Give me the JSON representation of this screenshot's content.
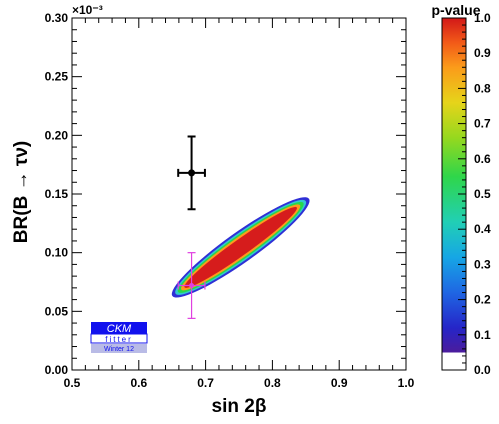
{
  "chart_data": {
    "type": "heatmap",
    "xlabel": "sin 2β",
    "ylabel": "BR(B → τν)",
    "y_exponent": "×10⁻³",
    "xlim": [
      0.5,
      1.0
    ],
    "ylim": [
      0.0,
      0.3
    ],
    "x_ticks": [
      "0.5",
      "0.6",
      "0.7",
      "0.8",
      "0.9",
      "1.0"
    ],
    "y_ticks": [
      "0.00",
      "0.05",
      "0.10",
      "0.15",
      "0.20",
      "0.25",
      "0.30"
    ],
    "colorbar": {
      "title": "p-value",
      "range": [
        0.0,
        1.0
      ],
      "ticks": [
        "0.0",
        "0.1",
        "0.2",
        "0.3",
        "0.4",
        "0.5",
        "0.6",
        "0.7",
        "0.8",
        "0.9",
        "1.0"
      ]
    },
    "allowed_region": {
      "orientation_from": [
        0.66,
        0.067
      ],
      "orientation_to": [
        0.845,
        0.142
      ],
      "levels": [
        0.05,
        0.32,
        0.6,
        0.9
      ]
    },
    "measurements": [
      {
        "color": "#000000",
        "x": 0.679,
        "x_err": 0.02,
        "y": 0.168,
        "y_err": 0.031
      },
      {
        "color": "#e040e0",
        "x": 0.679,
        "x_err": 0.02,
        "y": 0.072,
        "y_err": 0.028
      }
    ]
  },
  "logo": {
    "name": "CKM",
    "subname": "fitter",
    "edition": "Winter 12"
  },
  "colors": {
    "region_outer": "#2f2fd6",
    "region_cyan": "#33c7cf",
    "region_green": "#27d84a",
    "region_orange": "#ff9a1c",
    "region_core": "#d61c1c",
    "point_black": "#000000",
    "point_magenta": "#e040e0",
    "logo_blue": "#1111ee"
  }
}
